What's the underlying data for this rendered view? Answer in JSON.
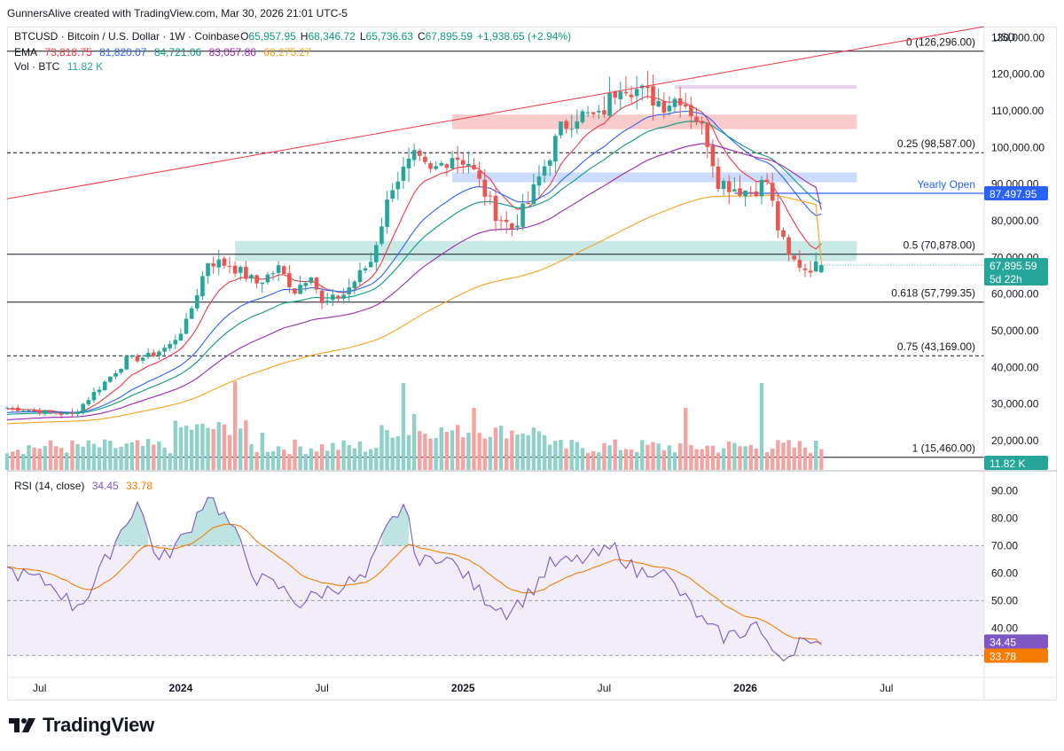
{
  "credit": "GunnersAlive created with TradingView.com, Mar 30, 2026 21:01 UTC-5",
  "header": {
    "symbol": "BTCUSD · Bitcoin / U.S. Dollar · 1W · Coinbase",
    "open_label": "O",
    "open": "65,957.95",
    "high_label": "H",
    "high": "68,346.72",
    "low_label": "L",
    "low": "65,736.63",
    "close_label": "C",
    "close": "67,895.59",
    "change": "+1,938.65 (+2.94%)",
    "ema_label": "EMA",
    "ema_values": [
      "73,818.75",
      "81,820.07",
      "84,721.06",
      "83,057.86",
      "68,275.27"
    ],
    "vol_label": "Vol · BTC",
    "vol_value": "11.82 K",
    "rsi_label": "RSI (14, close)",
    "rsi_value": "34.45",
    "rsi_ma_value": "33.78"
  },
  "colors": {
    "up": "#26a69a",
    "down": "#ef5350",
    "ema": [
      "#f23645",
      "#2962ff",
      "#089981",
      "#9c27b0",
      "#f7a21b"
    ],
    "rsi": "#7e57c2",
    "rsi_ma": "#f57c00",
    "price_tag": "#26a69a",
    "yearly_open": "#2962ff"
  },
  "axis": {
    "currency": "USD",
    "price_ticks": [
      "130,000.00",
      "120,000.00",
      "110,000.00",
      "100,000.00",
      "90,000.00",
      "80,000.00",
      "70,000.00",
      "60,000.00",
      "50,000.00",
      "40,000.00",
      "30,000.00",
      "20,000.00"
    ],
    "rsi_ticks": [
      "90.00",
      "80.00",
      "70.00",
      "60.00",
      "50.00",
      "40.00"
    ],
    "time_labels": [
      "Jul",
      "2024",
      "Jul",
      "2025",
      "Jul",
      "2026",
      "Jul"
    ]
  },
  "tags": {
    "yearly_open_label": "Yearly Open",
    "yearly_open": "87,497.95",
    "price": "67,895.59",
    "countdown": "5d 22h",
    "volume": "11.82 K",
    "rsi": "34.45",
    "rsi_ma": "33.78"
  },
  "fib_labels": [
    "0 (126,296.00)",
    "0.25 (98,587.00)",
    "0.5 (70,878.00)",
    "0.618 (57,799.35)",
    "0.75 (43,169.00)",
    "1 (15,460.00)"
  ],
  "brand": "TradingView",
  "chart_data": {
    "type": "candlestick",
    "title": "BTCUSD · Bitcoin / U.S. Dollar · 1W · Coinbase",
    "timeframe": "1W",
    "y_axis": {
      "label": "USD",
      "range": [
        12000,
        133000
      ]
    },
    "x_axis": {
      "labels": [
        "Jul",
        "2024",
        "Jul",
        "2025",
        "Jul",
        "2026",
        "Jul"
      ],
      "label_weeks": [
        6,
        32,
        58,
        84,
        110,
        136,
        162
      ]
    },
    "series_anchors": [
      {
        "week": 0,
        "close": 29000
      },
      {
        "week": 12,
        "close": 27000
      },
      {
        "week": 17,
        "close": 34500
      },
      {
        "week": 22,
        "close": 42000
      },
      {
        "week": 26,
        "close": 43000
      },
      {
        "week": 30,
        "close": 46000
      },
      {
        "week": 33,
        "close": 52000
      },
      {
        "week": 37,
        "close": 69000
      },
      {
        "week": 41,
        "close": 68000
      },
      {
        "week": 46,
        "close": 63000
      },
      {
        "week": 50,
        "close": 67000
      },
      {
        "week": 53,
        "close": 61000
      },
      {
        "week": 56,
        "close": 66000
      },
      {
        "week": 58,
        "close": 57000
      },
      {
        "week": 62,
        "close": 60000
      },
      {
        "week": 67,
        "close": 69000
      },
      {
        "week": 71,
        "close": 90000
      },
      {
        "week": 75,
        "close": 97000
      },
      {
        "week": 78,
        "close": 93000
      },
      {
        "week": 82,
        "close": 98000
      },
      {
        "week": 85,
        "close": 96000
      },
      {
        "week": 90,
        "close": 82000
      },
      {
        "week": 93,
        "close": 78000
      },
      {
        "week": 96,
        "close": 85000
      },
      {
        "week": 99,
        "close": 95000
      },
      {
        "week": 102,
        "close": 105000
      },
      {
        "week": 105,
        "close": 109000
      },
      {
        "week": 109,
        "close": 108000
      },
      {
        "week": 113,
        "close": 118000
      },
      {
        "week": 117,
        "close": 115000
      },
      {
        "week": 121,
        "close": 112000
      },
      {
        "week": 124,
        "close": 114000
      },
      {
        "week": 127,
        "close": 108000
      },
      {
        "week": 129,
        "close": 102000
      },
      {
        "week": 131,
        "close": 91000
      },
      {
        "week": 134,
        "close": 89000
      },
      {
        "week": 137,
        "close": 88000
      },
      {
        "week": 140,
        "close": 91000
      },
      {
        "week": 142,
        "close": 78000
      },
      {
        "week": 144,
        "close": 70000
      },
      {
        "week": 147,
        "close": 67000
      },
      {
        "week": 150,
        "close": 67900
      }
    ],
    "last_candle": {
      "open": 65957.95,
      "high": 68346.72,
      "low": 65736.63,
      "close": 67895.59
    },
    "ema_last_values": [
      73818.75,
      81820.07,
      84721.06,
      83057.86,
      68275.27
    ],
    "fibonacci": [
      {
        "level": "0",
        "price": 126296
      },
      {
        "level": "0.25",
        "price": 98587
      },
      {
        "level": "0.5",
        "price": 70878
      },
      {
        "level": "0.618",
        "price": 57799.35
      },
      {
        "level": "0.75",
        "price": 43169
      },
      {
        "level": "1",
        "price": 15460
      }
    ],
    "yearly_open": 87497.95,
    "zones": [
      {
        "color": "green",
        "from_week": 42,
        "price_low": 69000,
        "price_high": 74500
      },
      {
        "color": "red",
        "from_week": 82,
        "price_low": 105000,
        "price_high": 109000
      },
      {
        "color": "blue",
        "from_week": 82,
        "price_low": 90500,
        "price_high": 93200
      },
      {
        "color": "purple",
        "from_week": 123,
        "price_low": 116000,
        "price_high": 117000
      }
    ],
    "trendline": {
      "from": {
        "week": 0,
        "price": 86000
      },
      "to": {
        "week": 180,
        "price": 133000
      }
    },
    "volume": {
      "last": 11.82,
      "unit": "K BTC",
      "spikes": [
        {
          "week": 42,
          "value": 1.9
        },
        {
          "week": 47,
          "value": 0.6
        },
        {
          "week": 73,
          "value": 1.4
        },
        {
          "week": 75,
          "value": 0.9
        },
        {
          "week": 86,
          "value": 1.0
        },
        {
          "week": 125,
          "value": 1.0
        },
        {
          "week": 139,
          "value": 1.4
        }
      ]
    },
    "rsi": {
      "period": 14,
      "value": 34.45,
      "ma_value": 33.78,
      "bands": [
        70,
        50,
        30
      ],
      "range": [
        22,
        95
      ],
      "anchors": [
        {
          "week": 0,
          "rsi": 61
        },
        {
          "week": 5,
          "rsi": 58
        },
        {
          "week": 9,
          "rsi": 55
        },
        {
          "week": 12,
          "rsi": 48
        },
        {
          "week": 15,
          "rsi": 52
        },
        {
          "week": 20,
          "rsi": 72
        },
        {
          "week": 24,
          "rsi": 86
        },
        {
          "week": 28,
          "rsi": 64
        },
        {
          "week": 33,
          "rsi": 74
        },
        {
          "week": 37,
          "rsi": 89
        },
        {
          "week": 41,
          "rsi": 78
        },
        {
          "week": 46,
          "rsi": 58
        },
        {
          "week": 50,
          "rsi": 55
        },
        {
          "week": 54,
          "rsi": 49
        },
        {
          "week": 58,
          "rsi": 53
        },
        {
          "week": 62,
          "rsi": 56
        },
        {
          "week": 66,
          "rsi": 58
        },
        {
          "week": 70,
          "rsi": 76
        },
        {
          "week": 73,
          "rsi": 85
        },
        {
          "week": 76,
          "rsi": 63
        },
        {
          "week": 80,
          "rsi": 67
        },
        {
          "week": 84,
          "rsi": 60
        },
        {
          "week": 88,
          "rsi": 51
        },
        {
          "week": 92,
          "rsi": 46
        },
        {
          "week": 96,
          "rsi": 52
        },
        {
          "week": 100,
          "rsi": 63
        },
        {
          "week": 104,
          "rsi": 64
        },
        {
          "week": 108,
          "rsi": 66
        },
        {
          "week": 112,
          "rsi": 69
        },
        {
          "week": 116,
          "rsi": 60
        },
        {
          "week": 120,
          "rsi": 62
        },
        {
          "week": 123,
          "rsi": 55
        },
        {
          "week": 126,
          "rsi": 48
        },
        {
          "week": 129,
          "rsi": 40
        },
        {
          "week": 132,
          "rsi": 37
        },
        {
          "week": 135,
          "rsi": 38
        },
        {
          "week": 138,
          "rsi": 42
        },
        {
          "week": 140,
          "rsi": 33
        },
        {
          "week": 142,
          "rsi": 31
        },
        {
          "week": 144,
          "rsi": 30
        },
        {
          "week": 146,
          "rsi": 36
        },
        {
          "week": 148,
          "rsi": 32
        },
        {
          "week": 150,
          "rsi": 34.45
        }
      ]
    }
  }
}
